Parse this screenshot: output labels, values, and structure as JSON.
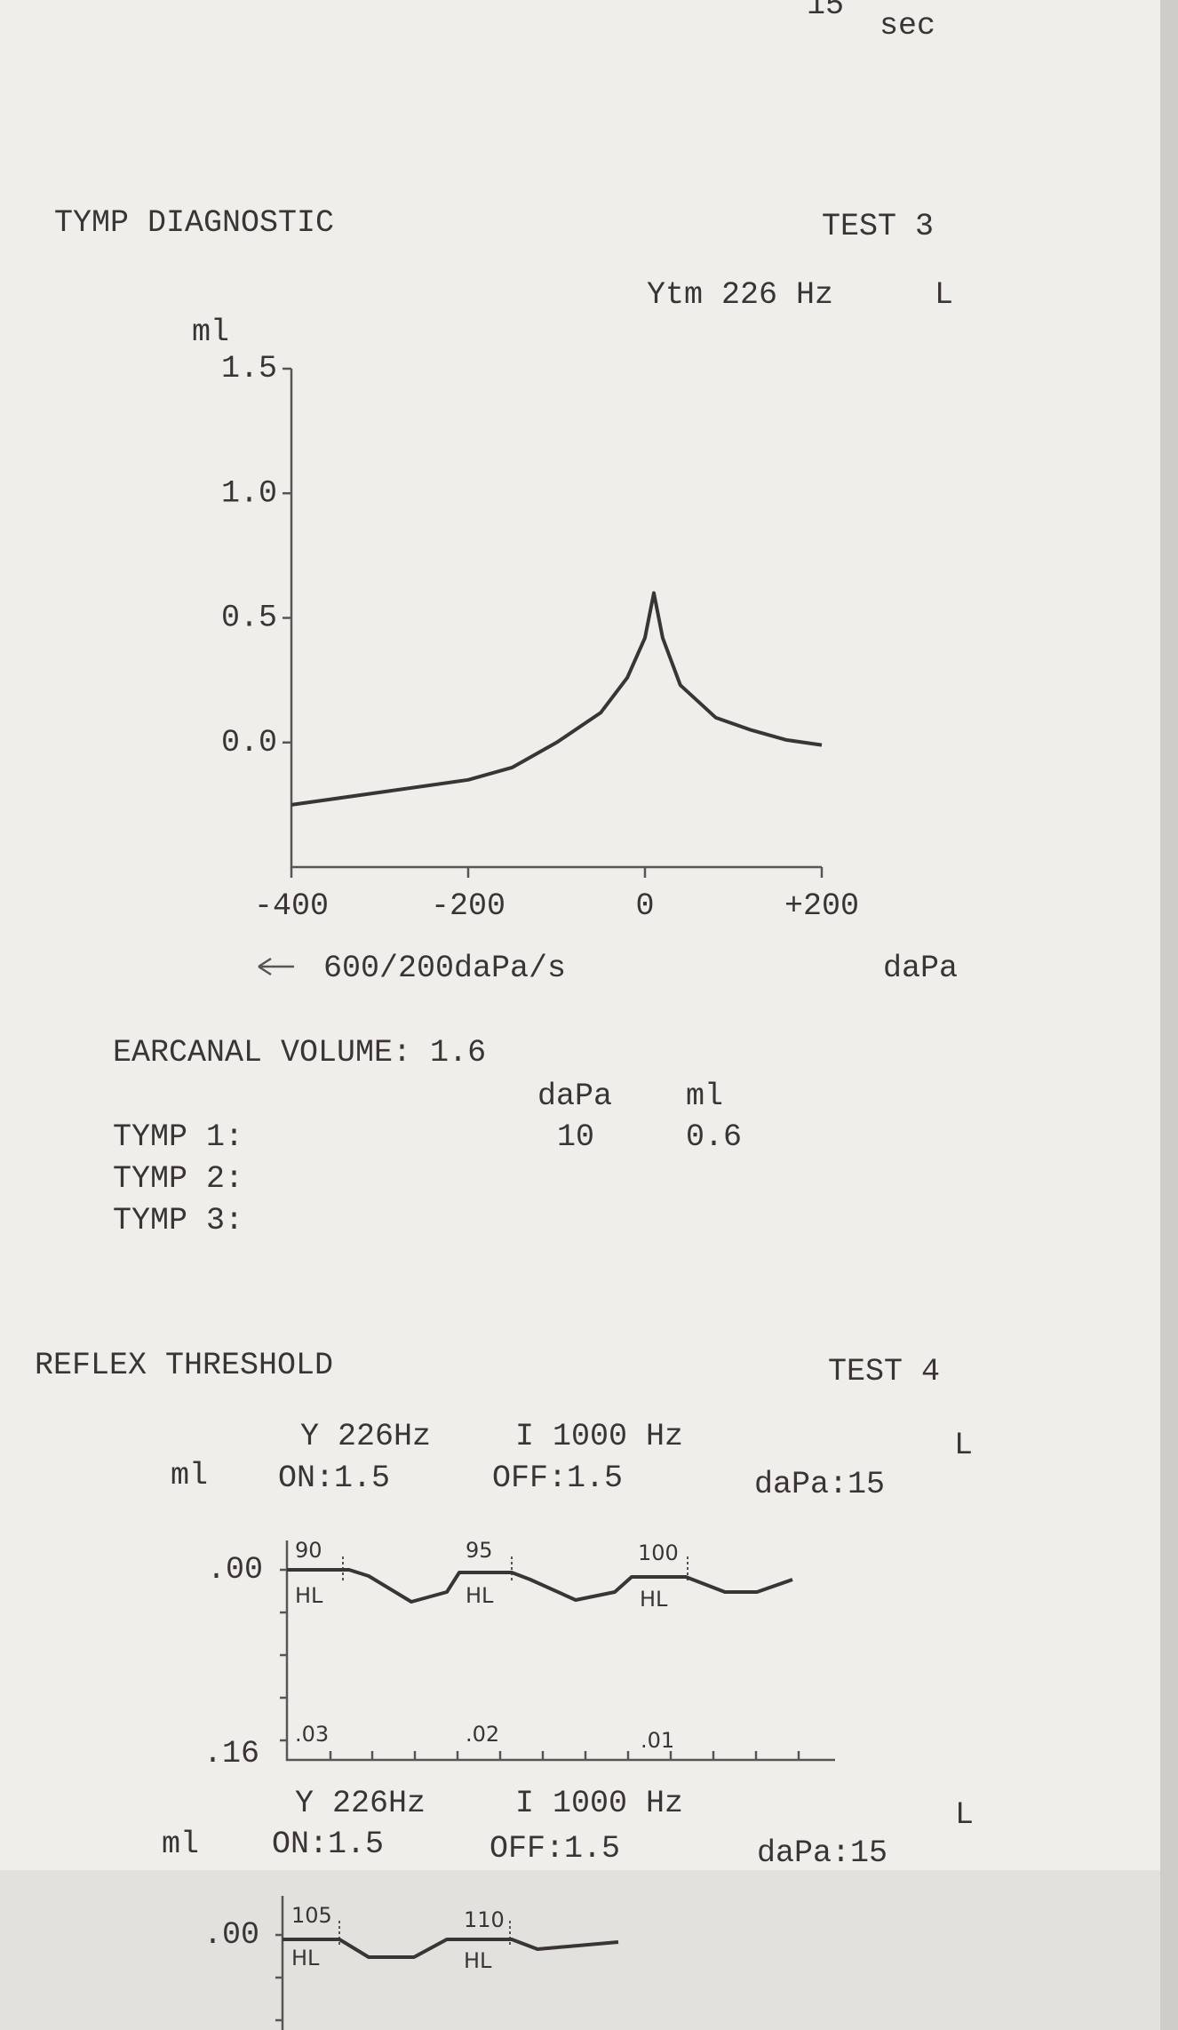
{
  "header": {
    "number": "15",
    "unit": "sec"
  },
  "tymp": {
    "title": "TYMP DIAGNOSTIC",
    "test": "TEST 3",
    "probe": "Ytm 226 Hz",
    "ear": "L"
  },
  "chart_data": {
    "type": "line",
    "y_label": "ml",
    "x_label": "daPa",
    "annotation": "600/200daPa/s",
    "x": [
      -400,
      -300,
      -200,
      -150,
      -100,
      -50,
      -20,
      0,
      10,
      20,
      40,
      80,
      120,
      160,
      200
    ],
    "values": [
      -0.25,
      -0.2,
      -0.15,
      -0.1,
      0.0,
      0.12,
      0.26,
      0.42,
      0.6,
      0.42,
      0.23,
      0.1,
      0.05,
      0.01,
      -0.01
    ],
    "color": "#3a3434",
    "xlim": [
      -400,
      200
    ],
    "xticks": [
      -400,
      -200,
      0,
      {
        "value": 200,
        "label": "+200"
      }
    ],
    "ylim": [
      -0.5,
      1.5
    ],
    "yticks": [
      1.5,
      {
        "value": 1.0,
        "label": "1.0"
      },
      {
        "value": 0.5,
        "label": "0.5"
      },
      {
        "value": 0.0,
        "label": "0.0"
      }
    ]
  },
  "results": {
    "volume": "EARCANAL VOLUME: 1.6",
    "col_dapa": "daPa",
    "col_ml": "ml",
    "rows": [
      [
        "TYMP 1:",
        "10",
        "0.6"
      ],
      [
        "TYMP 2:"
      ],
      [
        "TYMP 3:"
      ]
    ]
  },
  "reflex": {
    "title": "REFLEX THRESHOLD",
    "test": "TEST 4",
    "panels": [
      {
        "probe": "Y 226Hz",
        "stim": "I 1000 Hz",
        "ear": "L",
        "unit": "ml",
        "on": "ON:1.5",
        "off": "OFF:1.5",
        "dapa": "daPa:15",
        "top": ".00",
        "bottom": ".16",
        "levels": [
          "90",
          "95",
          "100"
        ],
        "hl": "HL",
        "amps": [
          ".03",
          ".02",
          ".01"
        ]
      },
      {
        "probe": "Y 226Hz",
        "stim": "I 1000 Hz",
        "ear": "L",
        "unit": "ml",
        "on": "ON:1.5",
        "off": "OFF:1.5",
        "dapa": "daPa:15",
        "top": ".00",
        "levels": [
          "105",
          "110"
        ],
        "hl": "HL"
      }
    ]
  }
}
